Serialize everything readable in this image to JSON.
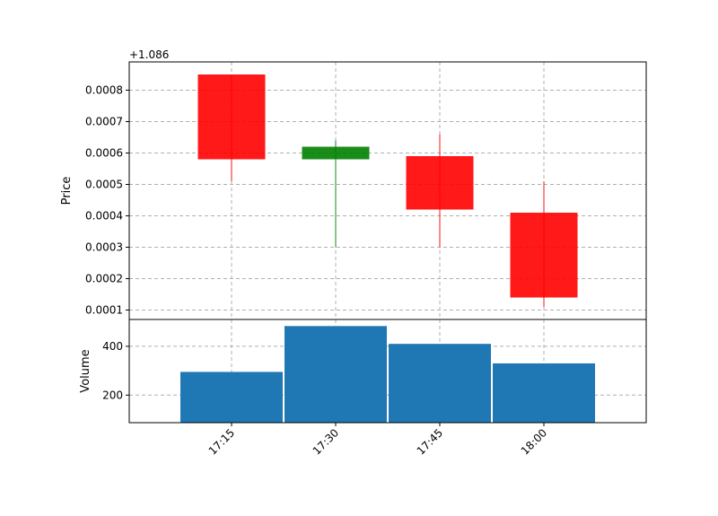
{
  "chart_data": [
    {
      "type": "candlestick",
      "ylabel": "Price",
      "offset_label": "+1.086",
      "ylim": [
        7e-05,
        0.00089
      ],
      "yticks": [
        0.0001,
        0.0002,
        0.0003,
        0.0004,
        0.0005,
        0.0006,
        0.0007,
        0.0008
      ],
      "ytick_labels": [
        "0.0001",
        "0.0002",
        "0.0003",
        "0.0004",
        "0.0005",
        "0.0006",
        "0.0007",
        "0.0008"
      ],
      "grid": true,
      "up_color": "#008000",
      "down_color": "#ff0000",
      "candles": [
        {
          "time": "17:15",
          "open": 0.00085,
          "high": 0.00085,
          "low": 0.00051,
          "close": 0.00058
        },
        {
          "time": "17:30",
          "open": 0.00058,
          "high": 0.00064,
          "low": 0.0003,
          "close": 0.00062
        },
        {
          "time": "17:45",
          "open": 0.00059,
          "high": 0.00066,
          "low": 0.0003,
          "close": 0.00042
        },
        {
          "time": "18:00",
          "open": 0.00041,
          "high": 0.00051,
          "low": 0.00011,
          "close": 0.00014
        }
      ]
    },
    {
      "type": "bar",
      "ylabel": "Volume",
      "ylim": [
        87,
        510
      ],
      "yticks": [
        200,
        400
      ],
      "ytick_labels": [
        "200",
        "400"
      ],
      "grid": true,
      "bar_color": "#1f77b4",
      "categories": [
        "17:15",
        "17:30",
        "17:45",
        "18:00"
      ],
      "values": [
        295,
        483,
        410,
        330
      ],
      "xtick_labels": [
        "17:15",
        "17:30",
        "17:45",
        "18:00"
      ]
    }
  ]
}
